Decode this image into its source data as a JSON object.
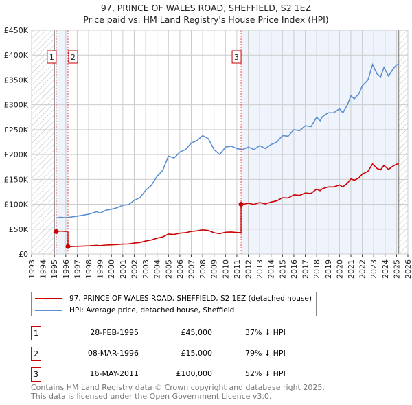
{
  "chart_data": {
    "type": "line",
    "title": "97, PRINCE OF WALES ROAD, SHEFFIELD, S2 1EZ",
    "subtitle": "Price paid vs. HM Land Registry's House Price Index (HPI)",
    "xlim": [
      1993,
      2026
    ],
    "ylim": [
      0,
      450000
    ],
    "x_ticks": [
      "1993",
      "1994",
      "1995",
      "1996",
      "1997",
      "1998",
      "1999",
      "2000",
      "2001",
      "2002",
      "2003",
      "2004",
      "2005",
      "2006",
      "2007",
      "2008",
      "2009",
      "2010",
      "2011",
      "2012",
      "2013",
      "2014",
      "2015",
      "2016",
      "2017",
      "2018",
      "2019",
      "2020",
      "2021",
      "2022",
      "2023",
      "2024",
      "2025",
      "2026"
    ],
    "y_ticks": [
      {
        "v": 0,
        "label": "£0"
      },
      {
        "v": 50000,
        "label": "£50K"
      },
      {
        "v": 100000,
        "label": "£100K"
      },
      {
        "v": 150000,
        "label": "£150K"
      },
      {
        "v": 200000,
        "label": "£200K"
      },
      {
        "v": 250000,
        "label": "£250K"
      },
      {
        "v": 300000,
        "label": "£300K"
      },
      {
        "v": 350000,
        "label": "£350K"
      },
      {
        "v": 400000,
        "label": "£400K"
      },
      {
        "v": 450000,
        "label": "£450K"
      }
    ],
    "grid": true,
    "data_range": [
      1995.0,
      2025.2
    ],
    "series": [
      {
        "name": "HPI: Average price, detached house, Sheffield",
        "color": "#5b8fd0",
        "x": [
          1995.1,
          1995.5,
          1996,
          1997,
          1998,
          1998.7,
          1999,
          1999.5,
          2000,
          2000.5,
          2001,
          2001.5,
          2002,
          2002.5,
          2003,
          2003.5,
          2004,
          2004.5,
          2005,
          2005.5,
          2006,
          2006.5,
          2007,
          2007.5,
          2008,
          2008.5,
          2009,
          2009.5,
          2010,
          2010.5,
          2011,
          2011.5,
          2012,
          2012.5,
          2013,
          2013.5,
          2014,
          2014.5,
          2015,
          2015.5,
          2016,
          2016.5,
          2017,
          2017.5,
          2018,
          2018.3,
          2018.5,
          2019,
          2019.5,
          2020,
          2020.3,
          2020.7,
          2021,
          2021.3,
          2021.7,
          2022,
          2022.5,
          2022.9,
          2023.3,
          2023.6,
          2023.9,
          2024.3,
          2024.7,
          2025,
          2025.2
        ],
        "y": [
          72000,
          74000,
          73000,
          76000,
          80000,
          85000,
          82000,
          88000,
          90000,
          93000,
          98000,
          99000,
          108000,
          113000,
          128000,
          138000,
          156000,
          168000,
          197000,
          193000,
          205000,
          210000,
          223000,
          228000,
          238000,
          232000,
          210000,
          200000,
          215000,
          217000,
          212000,
          210000,
          215000,
          210000,
          218000,
          212000,
          220000,
          225000,
          238000,
          237000,
          250000,
          248000,
          258000,
          256000,
          275000,
          268000,
          276000,
          284000,
          284000,
          292000,
          284000,
          300000,
          318000,
          312000,
          322000,
          338000,
          350000,
          381000,
          362000,
          356000,
          375000,
          358000,
          372000,
          380000,
          382000
        ]
      },
      {
        "name": "97, PRINCE OF WALES ROAD, SHEFFIELD, S2 1EZ (detached house)",
        "color": "#cc0000",
        "derived": "price paid indexed by HPI from each sale"
      }
    ],
    "sales": [
      {
        "id": "1",
        "x": 1995.16,
        "date": "28-FEB-1995",
        "price": 45000,
        "price_label": "£45,000",
        "hpi_label": "37% ↓ HPI"
      },
      {
        "id": "2",
        "x": 1996.19,
        "date": "08-MAR-1996",
        "price": 15000,
        "price_label": "£15,000",
        "hpi_label": "79% ↓ HPI"
      },
      {
        "id": "3",
        "x": 2011.37,
        "date": "16-MAY-2011",
        "price": 100000,
        "price_label": "£100,000",
        "hpi_label": "52% ↓ HPI"
      }
    ]
  },
  "legend": {
    "property": "97, PRINCE OF WALES ROAD, SHEFFIELD, S2 1EZ (detached house)",
    "hpi": "HPI: Average price, detached house, Sheffield"
  },
  "footer": {
    "line1": "Contains HM Land Registry data © Crown copyright and database right 2025.",
    "line2": "This data is licensed under the Open Government Licence v3.0."
  }
}
